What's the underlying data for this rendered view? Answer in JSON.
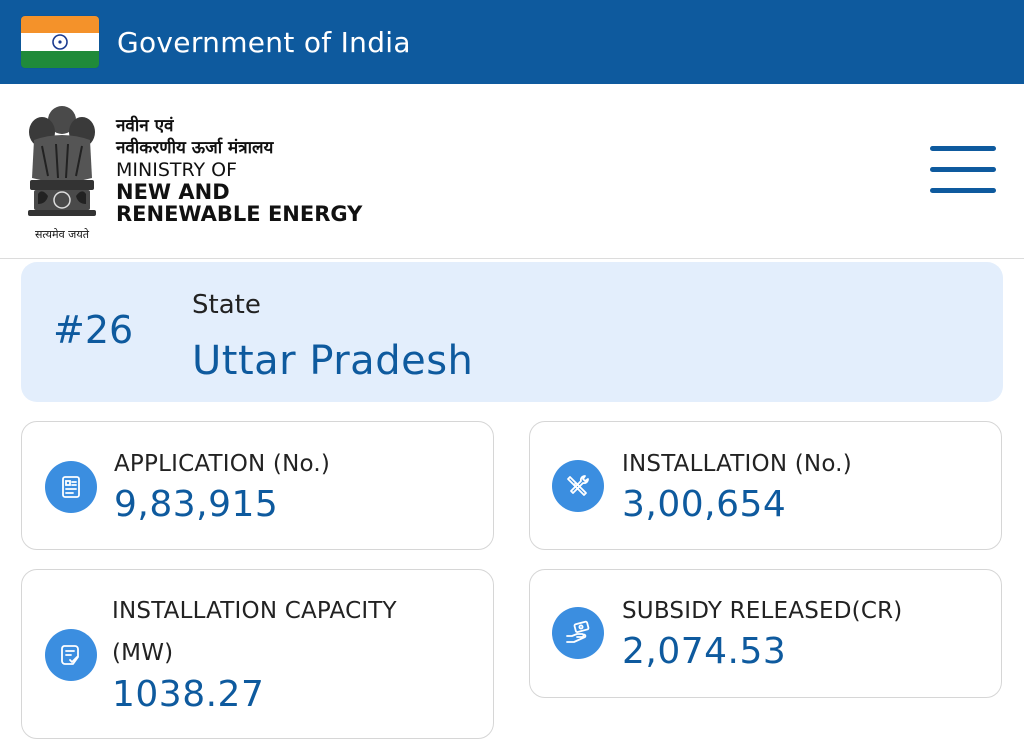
{
  "gov_bar": {
    "title": "Government of India"
  },
  "header": {
    "emblem_caption": "सत्यमेव जयते",
    "ministry_hi_line1": "नवीन एवं",
    "ministry_hi_line2": "नवीकरणीय ऊर्जा मंत्रालय",
    "ministry_en_line1": "MINISTRY OF",
    "ministry_en_line2": "NEW AND",
    "ministry_en_line3": "RENEWABLE ENERGY"
  },
  "state": {
    "rank": "#26",
    "label": "State",
    "name": "Uttar Pradesh"
  },
  "stats": {
    "application": {
      "label": "APPLICATION (No.)",
      "value": "9,83,915",
      "icon": "application-form-icon"
    },
    "installation": {
      "label": "INSTALLATION (No.)",
      "value": "3,00,654",
      "icon": "tools-icon"
    },
    "capacity": {
      "label_line1": "INSTALLATION CAPACITY",
      "label_line2": "(MW)",
      "value": "1038.27",
      "icon": "document-check-icon"
    },
    "subsidy": {
      "label": "SUBSIDY RELEASED(CR)",
      "value": "2,074.53",
      "icon": "hand-money-icon"
    }
  },
  "colors": {
    "primary": "#0e5a9e",
    "icon_bg": "#3b8ee0",
    "state_card_bg": "#e3eefc",
    "saffron": "#f4922a",
    "green": "#1f8a3a"
  }
}
